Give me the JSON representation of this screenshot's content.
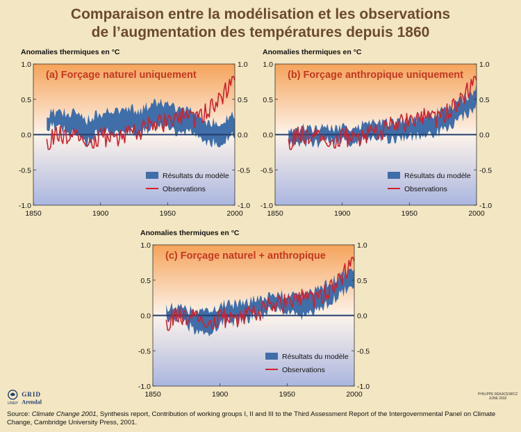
{
  "title_line1": "Comparaison entre la modélisation et les observations",
  "title_line2": "de l’augmentation des températures depuis 1860",
  "credit_line1": "PHILIPPE REKACEWICZ",
  "credit_line2": "JUNE 2002",
  "logo": {
    "unep": "UNEP",
    "grid": "GRID",
    "arendal": "Arendal"
  },
  "source": {
    "prefix": "Source: ",
    "italic": "Climate Change 2001",
    "rest": ", Synthesis report, Contribution of working groups I, II and III to the Third Assessment Report of the Intergovernmental Panel on Climate Change, Cambridge University Press, 2001."
  },
  "chart_data": [
    {
      "type": "area",
      "title": "(a) Forçage naturel uniquement",
      "ylabel": "Anomalies thermiques en °C",
      "xlim": [
        1850,
        2000
      ],
      "ylim": [
        -1.0,
        1.0
      ],
      "xticks": [
        1850,
        1900,
        1950,
        2000
      ],
      "yticks": [
        "1.0",
        "0.5",
        "0.0",
        "-0.5",
        "-1.0"
      ],
      "legend": {
        "position": "bottom-right",
        "model": "Résultats du modèle",
        "obs": "Observations"
      },
      "colors": {
        "model": "#3f6ea8",
        "obs": "#d1202b",
        "zero_line": "#1f3d6e"
      },
      "series": [
        {
          "name": "Résultats du modèle",
          "x": [
            1860,
            1870,
            1880,
            1890,
            1900,
            1910,
            1920,
            1930,
            1940,
            1950,
            1960,
            1970,
            1980,
            1990,
            2000
          ],
          "lower": [
            0.12,
            0.1,
            0.0,
            -0.12,
            0.05,
            0.0,
            0.05,
            0.03,
            0.12,
            0.08,
            0.0,
            0.02,
            -0.1,
            -0.15,
            0.0
          ],
          "upper": [
            0.3,
            0.32,
            0.3,
            0.2,
            0.3,
            0.32,
            0.38,
            0.35,
            0.45,
            0.42,
            0.35,
            0.3,
            0.18,
            0.15,
            0.28
          ]
        },
        {
          "name": "Observations",
          "x": [
            1860,
            1870,
            1880,
            1890,
            1900,
            1910,
            1920,
            1930,
            1940,
            1950,
            1960,
            1970,
            1980,
            1990,
            2000
          ],
          "values": [
            -0.1,
            0.0,
            -0.05,
            -0.15,
            0.0,
            -0.12,
            0.0,
            0.05,
            0.2,
            0.15,
            0.25,
            0.2,
            0.35,
            0.55,
            0.8
          ]
        }
      ]
    },
    {
      "type": "area",
      "title": "(b) Forçage anthropique uniquement",
      "ylabel": "Anomalies thermiques en °C",
      "xlim": [
        1850,
        2000
      ],
      "ylim": [
        -1.0,
        1.0
      ],
      "xticks": [
        1850,
        1900,
        1950,
        2000
      ],
      "yticks": [
        "1.0",
        "0.5",
        "0.0",
        "-0.5",
        "-1.0"
      ],
      "legend": {
        "position": "bottom-right",
        "model": "Résultats du modèle",
        "obs": "Observations"
      },
      "colors": {
        "model": "#3f6ea8",
        "obs": "#d1202b",
        "zero_line": "#1f3d6e"
      },
      "series": [
        {
          "name": "Résultats du modèle",
          "x": [
            1860,
            1870,
            1880,
            1890,
            1900,
            1910,
            1920,
            1930,
            1940,
            1950,
            1960,
            1970,
            1980,
            1990,
            2000
          ],
          "lower": [
            -0.1,
            -0.12,
            -0.12,
            -0.1,
            -0.1,
            -0.1,
            -0.08,
            -0.05,
            -0.05,
            -0.02,
            0.0,
            0.02,
            0.1,
            0.25,
            0.4
          ],
          "upper": [
            0.08,
            0.08,
            0.08,
            0.08,
            0.1,
            0.12,
            0.15,
            0.18,
            0.2,
            0.22,
            0.25,
            0.3,
            0.38,
            0.5,
            0.65
          ]
        },
        {
          "name": "Observations",
          "x": [
            1860,
            1870,
            1880,
            1890,
            1900,
            1910,
            1920,
            1930,
            1940,
            1950,
            1960,
            1970,
            1980,
            1990,
            2000
          ],
          "values": [
            -0.1,
            0.0,
            -0.05,
            -0.15,
            0.0,
            -0.12,
            0.0,
            0.05,
            0.2,
            0.15,
            0.25,
            0.2,
            0.35,
            0.55,
            0.8
          ]
        }
      ]
    },
    {
      "type": "area",
      "title": "(c) Forçage naturel + anthropique",
      "ylabel": "Anomalies thermiques en °C",
      "xlim": [
        1850,
        2000
      ],
      "ylim": [
        -1.0,
        1.0
      ],
      "xticks": [
        1850,
        1900,
        1950,
        2000
      ],
      "yticks": [
        "1.0",
        "0.5",
        "0.0",
        "-0.5",
        "-1.0"
      ],
      "legend": {
        "position": "bottom-right",
        "model": "Résultats du modèle",
        "obs": "Observations"
      },
      "colors": {
        "model": "#3f6ea8",
        "obs": "#d1202b",
        "zero_line": "#1f3d6e"
      },
      "series": [
        {
          "name": "Résultats du modèle",
          "x": [
            1860,
            1870,
            1880,
            1890,
            1900,
            1910,
            1920,
            1930,
            1940,
            1950,
            1960,
            1970,
            1980,
            1990,
            2000
          ],
          "lower": [
            -0.05,
            -0.05,
            -0.2,
            -0.3,
            -0.1,
            -0.1,
            -0.05,
            0.0,
            0.1,
            0.05,
            0.0,
            0.05,
            0.15,
            0.3,
            0.45
          ],
          "upper": [
            0.1,
            0.12,
            0.05,
            0.05,
            0.15,
            0.15,
            0.2,
            0.22,
            0.3,
            0.28,
            0.3,
            0.35,
            0.45,
            0.55,
            0.7
          ]
        },
        {
          "name": "Observations",
          "x": [
            1860,
            1870,
            1880,
            1890,
            1900,
            1910,
            1920,
            1930,
            1940,
            1950,
            1960,
            1970,
            1980,
            1990,
            2000
          ],
          "values": [
            -0.1,
            0.0,
            -0.05,
            -0.15,
            0.0,
            -0.12,
            0.0,
            0.05,
            0.2,
            0.15,
            0.25,
            0.2,
            0.35,
            0.55,
            0.8
          ]
        }
      ]
    }
  ]
}
